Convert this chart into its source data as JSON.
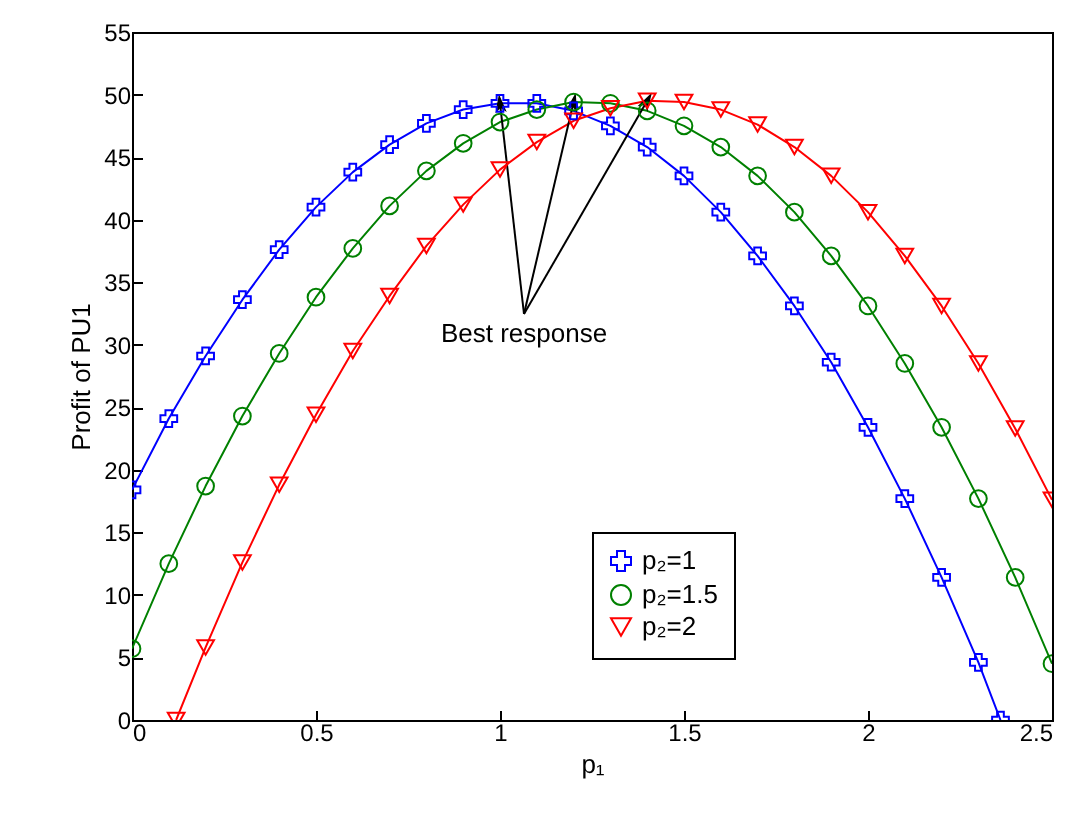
{
  "chart_data": {
    "type": "line",
    "xlabel": "p₁",
    "ylabel": "Profit of PU1",
    "xlim": [
      0,
      2.5
    ],
    "ylim": [
      0,
      55
    ],
    "xticks": [
      0,
      0.5,
      1,
      1.5,
      2,
      2.5
    ],
    "yticks": [
      0,
      5,
      10,
      15,
      20,
      25,
      30,
      35,
      40,
      45,
      50,
      55
    ],
    "grid": false,
    "legend": "bottom",
    "line_style": "solid",
    "annotations": [
      {
        "text": "Best response",
        "x": 1.2,
        "y": 49.4
      }
    ],
    "series": [
      {
        "name": "p₂=1",
        "color": "#0000ff",
        "marker": "cross",
        "x": [
          0,
          0.1,
          0.2,
          0.3,
          0.4,
          0.5,
          0.6,
          0.7,
          0.8,
          0.9,
          1,
          1.1,
          1.2,
          1.3,
          1.4,
          1.5,
          1.6,
          1.7,
          1.8,
          1.9,
          2,
          2.1,
          2.2,
          2.3,
          2.36
        ],
        "values": [
          18.4,
          24.1,
          29.1,
          33.6,
          37.6,
          41.0,
          43.8,
          46.0,
          47.7,
          48.8,
          49.3,
          49.3,
          48.7,
          47.5,
          45.8,
          43.5,
          40.6,
          37.1,
          33.1,
          28.6,
          23.4,
          17.7,
          11.4,
          4.6,
          0
        ]
      },
      {
        "name": "p₂=1.5",
        "color": "#008000",
        "marker": "circle",
        "x": [
          0,
          0.1,
          0.2,
          0.3,
          0.4,
          0.5,
          0.6,
          0.7,
          0.8,
          0.9,
          1,
          1.1,
          1.2,
          1.3,
          1.4,
          1.5,
          1.6,
          1.7,
          1.8,
          1.9,
          2,
          2.1,
          2.2,
          2.3,
          2.4,
          2.5
        ],
        "values": [
          5.7,
          12.5,
          18.7,
          24.3,
          29.3,
          33.8,
          37.7,
          41.1,
          43.9,
          46.1,
          47.8,
          48.8,
          49.4,
          49.3,
          48.7,
          47.5,
          45.8,
          43.5,
          40.6,
          37.1,
          33.1,
          28.5,
          23.4,
          17.7,
          11.4,
          4.5
        ]
      },
      {
        "name": "p₂=2",
        "color": "#ff0000",
        "marker": "triangle",
        "x": [
          0.12,
          0.2,
          0.3,
          0.4,
          0.5,
          0.6,
          0.7,
          0.8,
          0.9,
          1,
          1.1,
          1.2,
          1.3,
          1.4,
          1.5,
          1.6,
          1.7,
          1.8,
          1.9,
          2,
          2.1,
          2.2,
          2.3,
          2.4,
          2.5
        ],
        "values": [
          0,
          5.8,
          12.6,
          18.8,
          24.4,
          29.5,
          33.9,
          37.9,
          41.2,
          44.0,
          46.2,
          47.9,
          48.9,
          49.5,
          49.4,
          48.8,
          47.6,
          45.8,
          43.5,
          40.6,
          37.1,
          33.1,
          28.5,
          23.3,
          17.6
        ]
      }
    ]
  }
}
